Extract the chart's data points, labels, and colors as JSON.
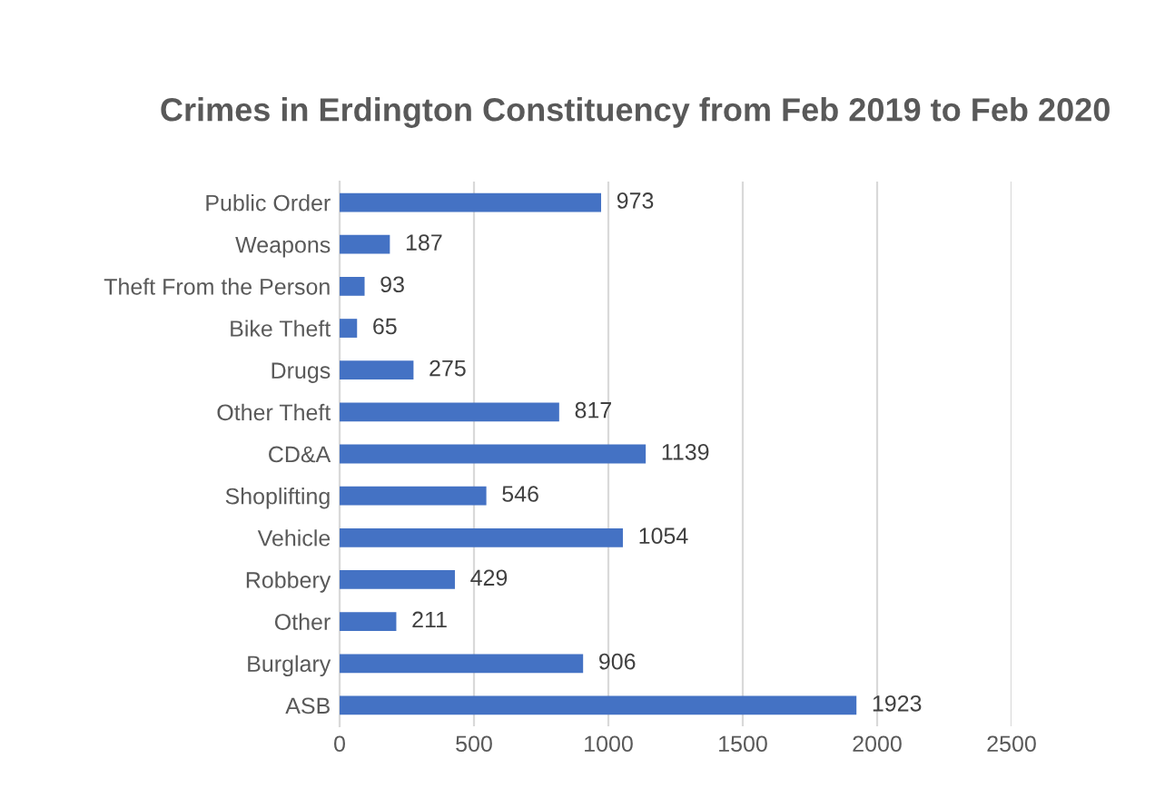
{
  "chart_data": {
    "type": "bar",
    "orientation": "horizontal",
    "title": "Crimes in Erdington Constituency from Feb 2019 to Feb 2020",
    "categories": [
      "Public Order",
      "Weapons",
      "Theft From the Person",
      "Bike Theft",
      "Drugs",
      "Other Theft",
      "CD&A",
      "Shoplifting",
      "Vehicle",
      "Robbery",
      "Other",
      "Burglary",
      "ASB"
    ],
    "values": [
      973,
      187,
      93,
      65,
      275,
      817,
      1139,
      546,
      1054,
      429,
      211,
      906,
      1923
    ],
    "color": "#4472c4",
    "xlim": [
      0,
      2500
    ],
    "xticks": [
      0,
      500,
      1000,
      1500,
      2000,
      2500
    ],
    "grid": "x",
    "data_labels": true
  }
}
